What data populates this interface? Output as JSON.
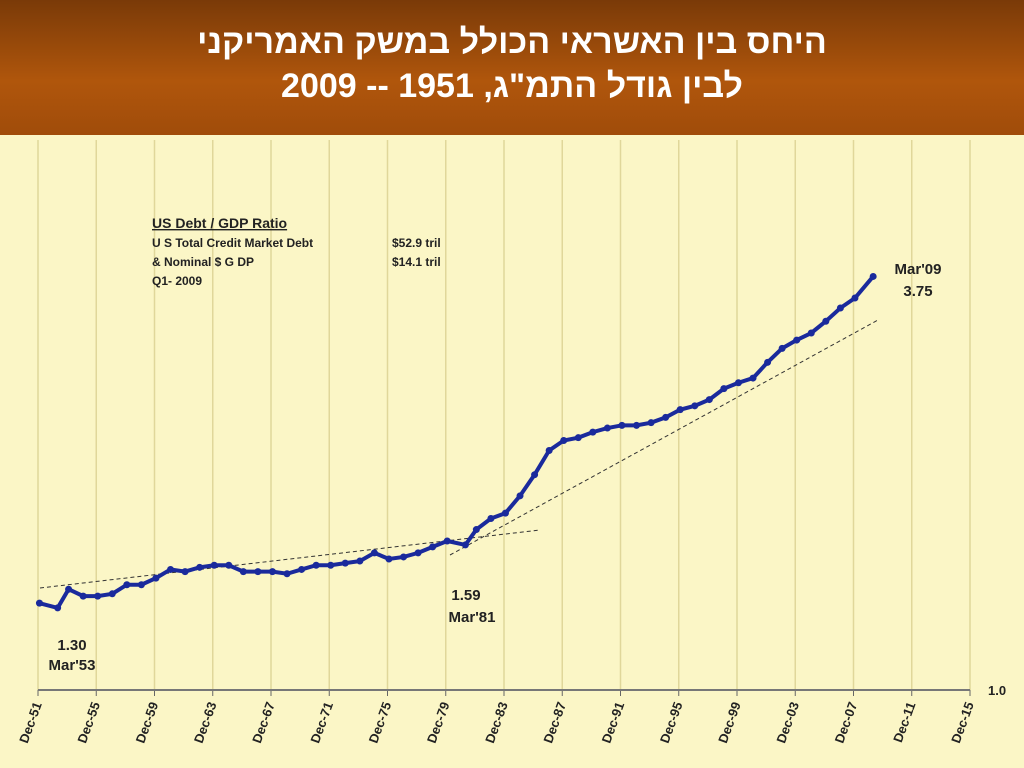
{
  "header": {
    "title_lines": [
      "היחס בין האשראי הכולל במשק האמריקני",
      "לבין גודל התמ\"ג, 1951 -- 2009"
    ]
  },
  "chart_data": {
    "type": "line",
    "log_y": true,
    "grid": true,
    "annotation_box": {
      "title": "US Debt / GDP Ratio",
      "rows": [
        [
          "U S Total Credit Market Debt",
          "$52.9 tril"
        ],
        [
          "& Nominal $ G DP",
          "$14.1 tril"
        ],
        [
          "Q1- 2009",
          null
        ]
      ]
    },
    "annotations": [
      {
        "value": "1.30",
        "date": "Mar'53"
      },
      {
        "value": "1.59",
        "date": "Mar'81"
      },
      {
        "value": "3.75",
        "date": "Mar'09"
      }
    ],
    "xlim": [
      1951.9,
      2015.9
    ],
    "xticks": [
      {
        "value": 1951.9,
        "label": "Dec-51"
      },
      {
        "value": 1955.9,
        "label": "Dec-55"
      },
      {
        "value": 1959.9,
        "label": "Dec-59"
      },
      {
        "value": 1963.9,
        "label": "Dec-63"
      },
      {
        "value": 1967.9,
        "label": "Dec-67"
      },
      {
        "value": 1971.9,
        "label": "Dec-71"
      },
      {
        "value": 1975.9,
        "label": "Dec-75"
      },
      {
        "value": 1979.9,
        "label": "Dec-79"
      },
      {
        "value": 1983.9,
        "label": "Dec-83"
      },
      {
        "value": 1987.9,
        "label": "Dec-87"
      },
      {
        "value": 1991.9,
        "label": "Dec-91"
      },
      {
        "value": 1995.9,
        "label": "Dec-95"
      },
      {
        "value": 1999.9,
        "label": "Dec-99"
      },
      {
        "value": 2003.9,
        "label": "Dec-03"
      },
      {
        "value": 2007.9,
        "label": "Dec-07"
      },
      {
        "value": 2011.9,
        "label": "Dec-11"
      },
      {
        "value": 2015.9,
        "label": "Dec-15"
      }
    ],
    "ylim": [
      1,
      5.8
    ],
    "yticks": [
      {
        "value": 1,
        "label": "1.0"
      }
    ],
    "x": [
      1952,
      1953.25,
      1954,
      1955,
      1956,
      1957,
      1958,
      1959,
      1960,
      1961,
      1962,
      1963,
      1964,
      1965,
      1966,
      1967,
      1968,
      1969,
      1970,
      1971,
      1972,
      1973,
      1974,
      1975,
      1976,
      1977,
      1978,
      1979,
      1980,
      1981.25,
      1982,
      1983,
      1984,
      1985,
      1986,
      1987,
      1988,
      1989,
      1990,
      1991,
      1992,
      1993,
      1994,
      1995,
      1996,
      1997,
      1998,
      1999,
      2000,
      2001,
      2002,
      2003,
      2004,
      2005,
      2006,
      2007,
      2008,
      2009.25
    ],
    "series": [
      {
        "color": "#1a2a9c",
        "values": [
          1.32,
          1.3,
          1.38,
          1.35,
          1.35,
          1.36,
          1.4,
          1.4,
          1.43,
          1.47,
          1.46,
          1.48,
          1.49,
          1.49,
          1.46,
          1.46,
          1.46,
          1.45,
          1.47,
          1.49,
          1.49,
          1.5,
          1.51,
          1.55,
          1.52,
          1.53,
          1.55,
          1.58,
          1.61,
          1.59,
          1.67,
          1.73,
          1.76,
          1.86,
          1.99,
          2.15,
          2.22,
          2.24,
          2.28,
          2.31,
          2.33,
          2.33,
          2.35,
          2.39,
          2.45,
          2.48,
          2.53,
          2.62,
          2.67,
          2.71,
          2.85,
          2.98,
          3.06,
          3.13,
          3.25,
          3.39,
          3.5,
          3.75
        ]
      }
    ]
  }
}
